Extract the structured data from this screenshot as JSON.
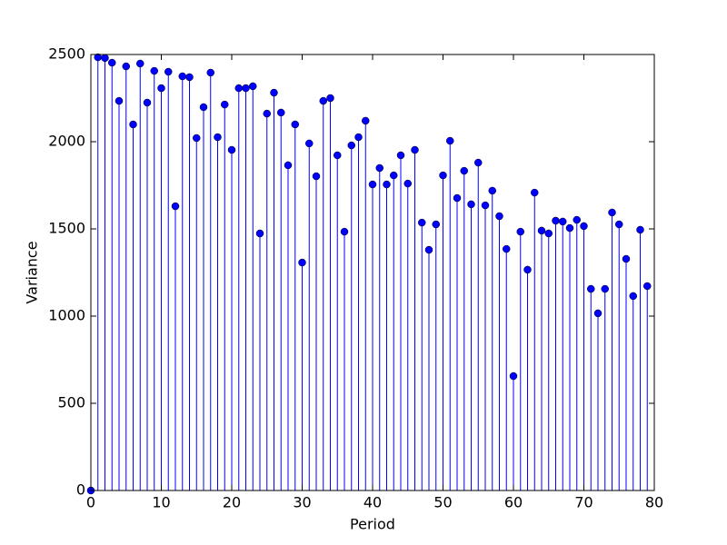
{
  "chart_data": {
    "type": "stem",
    "xlabel": "Period",
    "ylabel": "Variance",
    "x": [
      0,
      1,
      2,
      3,
      4,
      5,
      6,
      7,
      8,
      9,
      10,
      11,
      12,
      13,
      14,
      15,
      16,
      17,
      18,
      19,
      20,
      21,
      22,
      23,
      24,
      25,
      26,
      27,
      28,
      29,
      30,
      31,
      32,
      33,
      34,
      35,
      36,
      37,
      38,
      39,
      40,
      41,
      42,
      43,
      44,
      45,
      46,
      47,
      48,
      49,
      50,
      51,
      52,
      53,
      54,
      55,
      56,
      57,
      58,
      59,
      60,
      61,
      62,
      63,
      64,
      65,
      66,
      67,
      68,
      69,
      70,
      71,
      72,
      73,
      74,
      75,
      76,
      77,
      78,
      79
    ],
    "values": [
      0,
      2484,
      2480,
      2453,
      2234,
      2432,
      2099,
      2448,
      2224,
      2406,
      2307,
      2401,
      1630,
      2375,
      2370,
      2021,
      2198,
      2396,
      2026,
      2213,
      1953,
      2307,
      2307,
      2318,
      1474,
      2161,
      2281,
      2167,
      1865,
      2099,
      1307,
      1990,
      1802,
      2234,
      2250,
      1922,
      1484,
      1979,
      2026,
      2120,
      1755,
      1849,
      1755,
      1807,
      1922,
      1760,
      1953,
      1536,
      1380,
      1526,
      1807,
      2005,
      1677,
      1833,
      1641,
      1880,
      1635,
      1719,
      1573,
      1385,
      656,
      1484,
      1266,
      1708,
      1490,
      1474,
      1547,
      1542,
      1505,
      1552,
      1516,
      1156,
      1016,
      1156,
      1594,
      1526,
      1328,
      1115,
      1495,
      1172
    ],
    "color": "#0000ff",
    "xlim": [
      0,
      80
    ],
    "xticks": [
      0,
      10,
      20,
      30,
      40,
      50,
      60,
      70,
      80
    ],
    "ylim": [
      0,
      2500
    ],
    "yticks": [
      0,
      500,
      1000,
      1500,
      2000,
      2500
    ]
  }
}
